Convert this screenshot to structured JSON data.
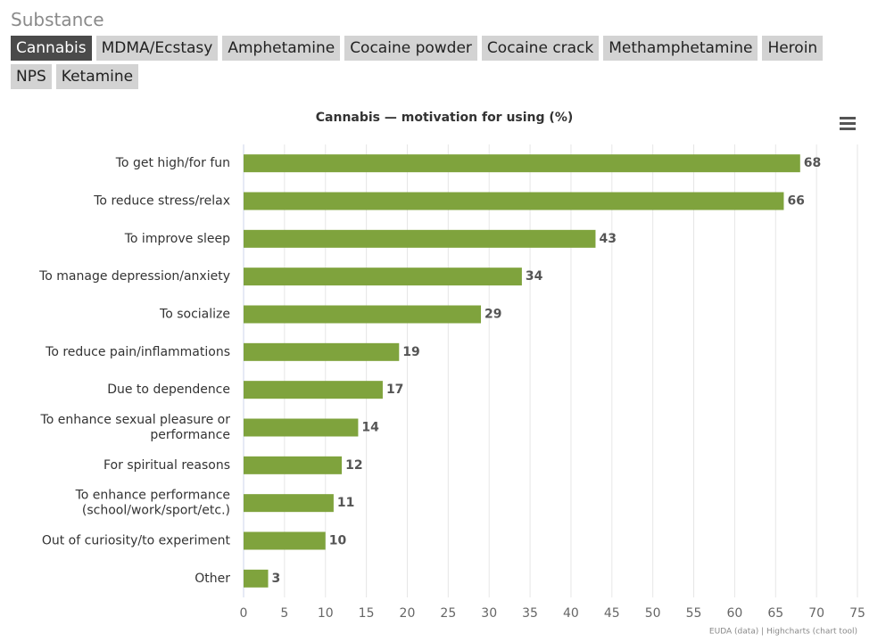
{
  "substance_label": "Substance",
  "tabs": [
    "Cannabis",
    "MDMA/Ecstasy",
    "Amphetamine",
    "Cocaine powder",
    "Cocaine crack",
    "Methamphetamine",
    "Heroin",
    "NPS",
    "Ketamine"
  ],
  "credits": "EUDA (data) | Highcharts (chart tool)",
  "chart_data": {
    "type": "bar",
    "orientation": "horizontal",
    "title": "Cannabis — motivation for using (%)",
    "categories": [
      "To get high/for fun",
      "To reduce stress/relax",
      "To improve sleep",
      "To manage depression/anxiety",
      "To socialize",
      "To reduce pain/inflammations",
      "Due to dependence",
      "To enhance sexual pleasure or performance",
      "For spiritual reasons",
      "To enhance performance (school/work/sport/etc.)",
      "Out of curiosity/to experiment",
      "Other"
    ],
    "values": [
      68,
      66,
      43,
      34,
      29,
      19,
      17,
      14,
      12,
      11,
      10,
      3
    ],
    "color": "#7fa33d",
    "xlim": [
      0,
      75
    ],
    "xticks": [
      0,
      5,
      10,
      15,
      20,
      25,
      30,
      35,
      40,
      45,
      50,
      55,
      60,
      65,
      70,
      75
    ],
    "grid": true
  }
}
